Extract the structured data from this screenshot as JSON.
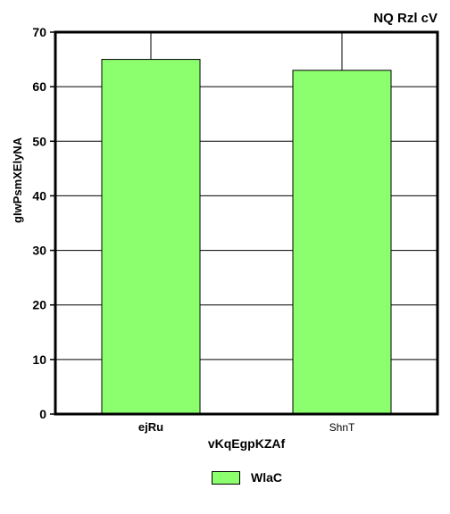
{
  "chart_data": {
    "type": "bar",
    "title": "NQ Rzl cV",
    "xlabel": "vKqEgpKZAf",
    "ylabel": "gIwPsmXElyNA",
    "categories": [
      "ejRu",
      "ShnT"
    ],
    "category_label_bold": [
      true,
      false
    ],
    "series": [
      {
        "name": "WlaC",
        "values": [
          65,
          63
        ],
        "color": "#8cff6e"
      }
    ],
    "ylim": [
      0,
      70
    ],
    "yticks": [
      0,
      10,
      20,
      30,
      40,
      50,
      60,
      70
    ],
    "grid": true,
    "legend_position": "bottom"
  }
}
